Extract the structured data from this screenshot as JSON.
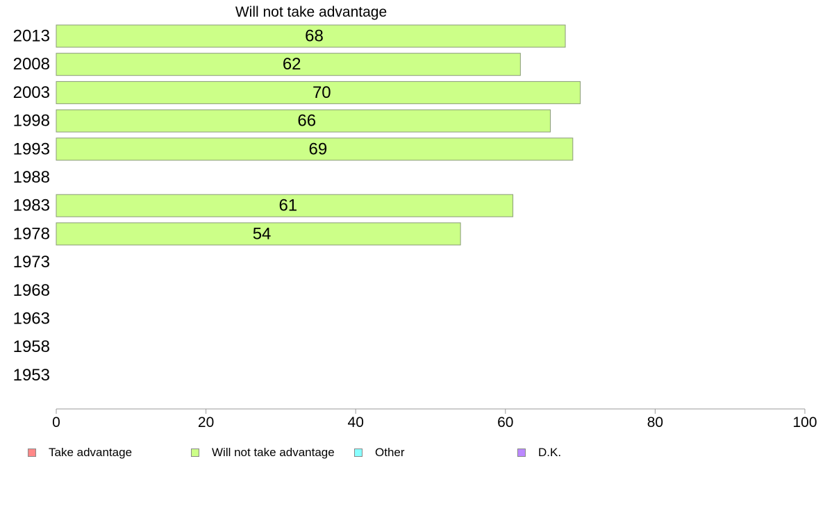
{
  "chart_data": {
    "type": "bar",
    "orientation": "horizontal",
    "title": "Will not take advantage",
    "categories": [
      "2013",
      "2008",
      "2003",
      "1998",
      "1993",
      "1988",
      "1983",
      "1978",
      "1973",
      "1968",
      "1963",
      "1958",
      "1953"
    ],
    "series": [
      {
        "name": "Will not take advantage",
        "color": "#ccff88",
        "values": [
          68,
          62,
          70,
          66,
          69,
          null,
          61,
          54,
          null,
          null,
          null,
          null,
          null
        ]
      }
    ],
    "xlim": [
      0,
      100
    ],
    "xticks": [
      0,
      20,
      40,
      60,
      80,
      100
    ],
    "grid": false,
    "legend_position": "bottom"
  },
  "legend": {
    "items": [
      {
        "label": "Take advantage",
        "color": "#ff8888"
      },
      {
        "label": "Will not take advantage",
        "color": "#ccff88"
      },
      {
        "label": "Other",
        "color": "#88ffff"
      },
      {
        "label": "D.K.",
        "color": "#bb88ff"
      }
    ]
  }
}
